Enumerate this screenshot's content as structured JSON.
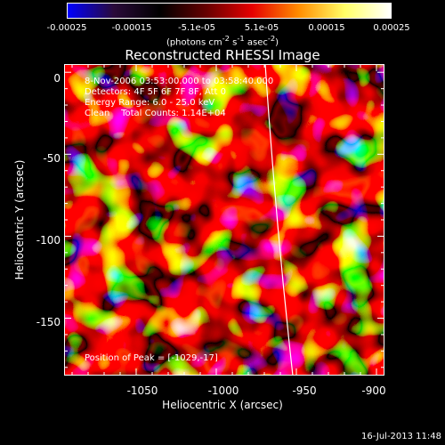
{
  "colorbar": {
    "ticks": [
      "-0.00025",
      "-0.00015",
      "-5.1e-05",
      "5.1e-05",
      "0.00015",
      "0.00025"
    ],
    "units_prefix": "(photons cm",
    "units_sup1": "-2",
    "units_mid": " s",
    "units_sup2": "-1",
    "units_mid2": " asec",
    "units_sup3": "-2",
    "units_suffix": ")"
  },
  "title": "Reconstructed RHESSI Image",
  "annotations": {
    "time": "8-Nov-2006 03:53:00.000 to 03:58:40.000",
    "detectors": "Detectors: 4F 5F 6F 7F 8F, Att 0",
    "energy": "Energy Range: 6.0 - 25.0 keV",
    "clean": "Clean    Total Counts: 1.14E+04",
    "peak": "Position of Peak = [-1029,-17]"
  },
  "axes": {
    "xlabel": "Heliocentric X (arcsec)",
    "ylabel": "Heliocentric Y (arcsec)",
    "xticks": [
      "-1050",
      "-1000",
      "-950",
      "-900"
    ],
    "yticks": [
      "0",
      "-50",
      "-100",
      "-150"
    ],
    "xlim": [
      -1095,
      -895
    ],
    "ylim": [
      -185,
      5
    ]
  },
  "timestamp": "16-Jul-2013 11:48",
  "colors": {
    "colormap": [
      "#0000ff",
      "#2a0a3a",
      "#000000",
      "#660000",
      "#e60000",
      "#ff8c00",
      "#ffff66",
      "#ffffff"
    ],
    "limb": "#ffffff"
  }
}
